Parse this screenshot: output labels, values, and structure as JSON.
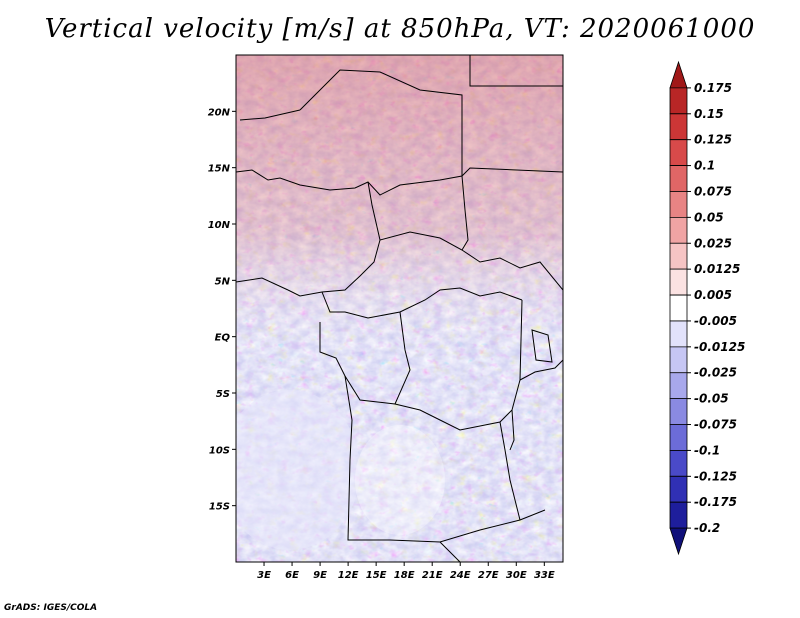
{
  "title": "Vertical velocity [m/s] at 850hPa, VT: 2020061000",
  "credit": "GrADS: IGES/COLA",
  "map": {
    "lon_labels": [
      "3E",
      "6E",
      "9E",
      "12E",
      "15E",
      "18E",
      "21E",
      "24E",
      "27E",
      "30E",
      "33E"
    ],
    "lat_labels": [
      "20N",
      "15N",
      "10N",
      "5N",
      "EQ",
      "5S",
      "10S",
      "15S"
    ],
    "lon_range": [
      0,
      35
    ],
    "lat_range": [
      -20,
      25
    ]
  },
  "colorbar": {
    "labels": [
      "0.175",
      "0.15",
      "0.125",
      "0.1",
      "0.075",
      "0.05",
      "0.025",
      "0.0125",
      "0.005",
      "-0.005",
      "-0.0125",
      "-0.025",
      "-0.05",
      "-0.075",
      "-0.1",
      "-0.125",
      "-0.175",
      "-0.2"
    ],
    "colors": [
      "#a01818",
      "#b82626",
      "#cc3636",
      "#d84a4a",
      "#e06666",
      "#e88484",
      "#f0a4a4",
      "#f6c4c4",
      "#fbe2e2",
      "#ffffff",
      "#e2e2fb",
      "#c6c6f4",
      "#a8a8ec",
      "#8a8ae2",
      "#6c6cd8",
      "#4a4ac8",
      "#3030b4",
      "#1e1e9c",
      "#10107a"
    ]
  }
}
